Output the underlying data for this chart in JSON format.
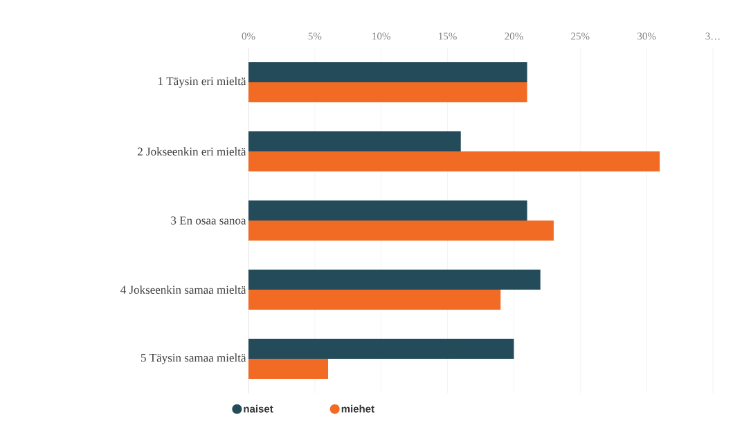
{
  "chart_data": {
    "type": "bar",
    "orientation": "horizontal",
    "categories": [
      "1 Täysin eri mieltä",
      "2 Jokseenkin eri mieltä",
      "3 En osaa sanoa",
      "4 Jokseenkin samaa mieltä",
      "5 Täysin samaa mieltä"
    ],
    "series": [
      {
        "name": "naiset",
        "color": "#234b5a",
        "values": [
          21,
          16,
          21,
          22,
          20
        ]
      },
      {
        "name": "miehet",
        "color": "#f26b24",
        "values": [
          21,
          31,
          23,
          19,
          6
        ]
      }
    ],
    "xlim": [
      0,
      35
    ],
    "xticks": [
      {
        "value": 0,
        "label": "0%"
      },
      {
        "value": 5,
        "label": "5%"
      },
      {
        "value": 10,
        "label": "10%"
      },
      {
        "value": 15,
        "label": "15%"
      },
      {
        "value": 20,
        "label": "20%"
      },
      {
        "value": 25,
        "label": "25%"
      },
      {
        "value": 30,
        "label": "30%"
      },
      {
        "value": 35,
        "label": "3…"
      }
    ],
    "grid": "x",
    "legend": "bottom"
  }
}
